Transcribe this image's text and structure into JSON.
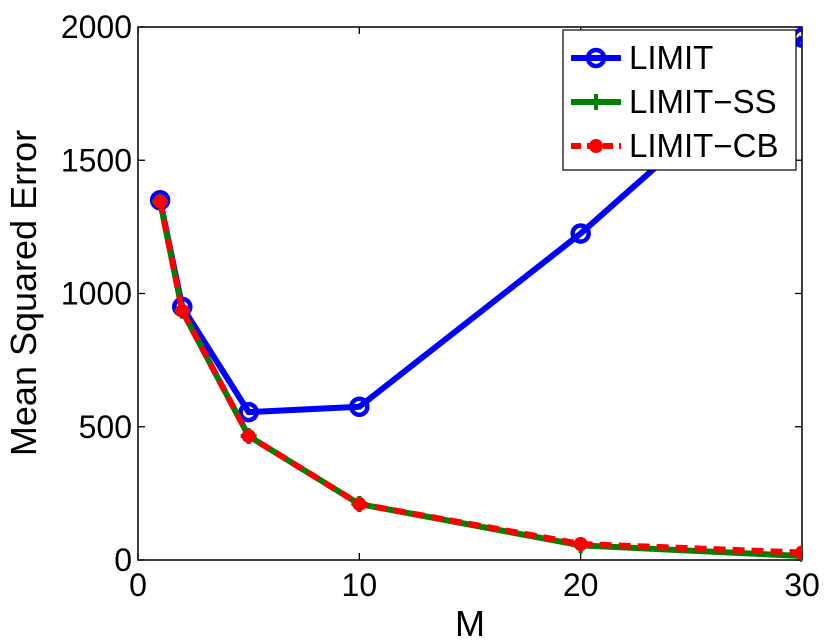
{
  "chart_data": {
    "type": "line",
    "title": "",
    "xlabel": "M",
    "ylabel": "Mean Squared Error",
    "xlim": [
      0,
      30
    ],
    "ylim": [
      0,
      2000
    ],
    "xticks": [
      0,
      10,
      20,
      30
    ],
    "yticks": [
      0,
      500,
      1000,
      1500,
      2000
    ],
    "grid": false,
    "legend_position": "top-right",
    "x": [
      1,
      2,
      5,
      10,
      20,
      30
    ],
    "series": [
      {
        "name": "LIMIT",
        "color": "#0000ff",
        "marker": "circle-open",
        "dash": "solid",
        "values": [
          1350,
          950,
          555,
          575,
          1225,
          1960
        ]
      },
      {
        "name": "LIMIT−SS",
        "color": "#008000",
        "marker": "plus",
        "dash": "solid",
        "values": [
          1345,
          935,
          465,
          210,
          55,
          15
        ]
      },
      {
        "name": "LIMIT−CB",
        "color": "#ff0000",
        "marker": "dot",
        "dash": "dashed",
        "values": [
          1345,
          935,
          465,
          210,
          60,
          28
        ]
      }
    ]
  }
}
